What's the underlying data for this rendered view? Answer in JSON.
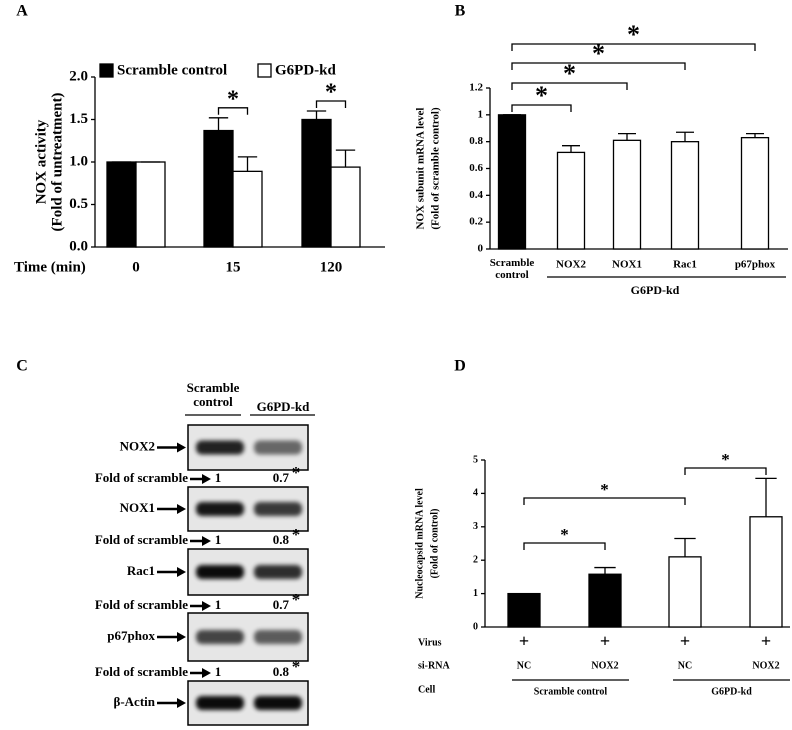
{
  "chart_data": [
    {
      "type": "bar",
      "panel": "A",
      "ylabel": [
        "NOX activity",
        "(Fold of untreatment)"
      ],
      "xlabel": "Time (min)",
      "categories": [
        "0",
        "15",
        "120"
      ],
      "series": [
        {
          "name": "Scramble control",
          "color": "#000000",
          "values": [
            1,
            1.37,
            1.5
          ],
          "errors": [
            0,
            0.15,
            0.1
          ]
        },
        {
          "name": "G6PD-kd",
          "color": "#ffffff",
          "values": [
            1,
            0.89,
            0.94
          ],
          "errors": [
            0,
            0.17,
            0.2
          ]
        }
      ],
      "ylim": [
        0,
        2
      ],
      "yticks": [
        {
          "value": 0,
          "label": "0.0"
        },
        {
          "value": 0.5,
          "label": "0.5"
        },
        {
          "value": 1,
          "label": "1.0"
        },
        {
          "value": 1.5,
          "label": "1.5"
        },
        {
          "value": 2,
          "label": "2.0"
        }
      ],
      "annotations": [
        {
          "text": "*",
          "category": 1
        },
        {
          "text": "*",
          "category": 2
        }
      ]
    },
    {
      "type": "bar",
      "panel": "B",
      "ylabel": [
        "NOX subunit mRNA level",
        "(Fold of scramble control)"
      ],
      "categories": [
        "Scramble control",
        "NOX2",
        "NOX1",
        "Rac1",
        "p67phox"
      ],
      "values": [
        1,
        0.72,
        0.81,
        0.8,
        0.83
      ],
      "errors": [
        0,
        0.05,
        0.05,
        0.07,
        0.03
      ],
      "colors": [
        "#000000",
        "#ffffff",
        "#ffffff",
        "#ffffff",
        "#ffffff"
      ],
      "group_label": "G6PD-kd",
      "ylim": [
        0,
        1.2
      ],
      "yticks": [
        0,
        0.2,
        0.4,
        0.6,
        0.8,
        1,
        1.2
      ],
      "annotations": [
        {
          "text": "*",
          "between": [
            0,
            1
          ]
        },
        {
          "text": "*",
          "between": [
            0,
            2
          ]
        },
        {
          "text": "*",
          "between": [
            0,
            3
          ]
        },
        {
          "text": "*",
          "between": [
            0,
            4
          ]
        }
      ]
    },
    {
      "type": "bar",
      "panel": "D",
      "ylabel": [
        "Nucleocapsid mRNA level",
        "(Fold of control)"
      ],
      "values": [
        1,
        1.58,
        2.1,
        3.3
      ],
      "errors": [
        0,
        0.2,
        0.55,
        1.15
      ],
      "colors": [
        "#000000",
        "#000000",
        "#ffffff",
        "#ffffff"
      ],
      "ylim": [
        0,
        5
      ],
      "yticks": [
        0,
        1,
        2,
        3,
        4,
        5
      ],
      "rows": [
        {
          "label": "Virus",
          "values": [
            "+",
            "+",
            "+",
            "+"
          ]
        },
        {
          "label": "si-RNA",
          "values": [
            "NC",
            "NOX2",
            "NC",
            "NOX2"
          ]
        }
      ],
      "cell_label": "Cell",
      "cells": [
        "Scramble control",
        "G6PD-kd"
      ],
      "annotations": [
        {
          "text": "*",
          "between": [
            0,
            1
          ]
        },
        {
          "text": "*",
          "between": [
            0,
            2
          ]
        },
        {
          "text": "*",
          "between": [
            2,
            3
          ]
        }
      ]
    }
  ],
  "blot": {
    "panel": "C",
    "columns": [
      "Scramble control",
      "G6PD-kd"
    ],
    "rows": [
      {
        "protein": "NOX2",
        "fold_label": "Fold of scramble",
        "fold": [
          1,
          0.7
        ],
        "mark": "*"
      },
      {
        "protein": "NOX1",
        "fold_label": "Fold of scramble",
        "fold": [
          1,
          0.8
        ],
        "mark": "*"
      },
      {
        "protein": "Rac1",
        "fold_label": "Fold of scramble",
        "fold": [
          1,
          0.7
        ],
        "mark": "*"
      },
      {
        "protein": "p67phox",
        "fold_label": "Fold of scramble",
        "fold": [
          1,
          0.8
        ],
        "mark": "*"
      }
    ],
    "loading": "β-Actin"
  }
}
